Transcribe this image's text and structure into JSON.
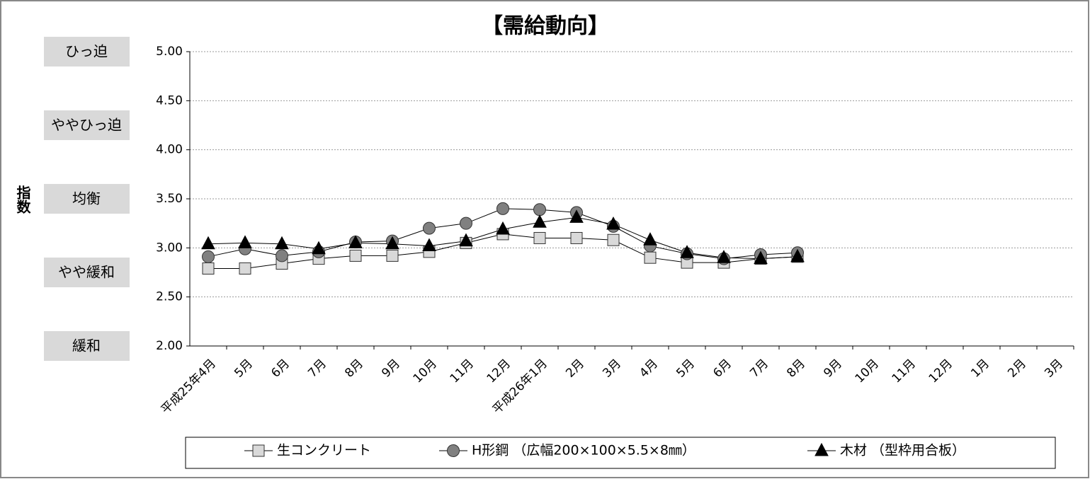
{
  "chart_data": {
    "type": "line",
    "title": "【需給動向】",
    "y_label": "指数",
    "categories": [
      "平成25年4月",
      "5月",
      "6月",
      "7月",
      "8月",
      "9月",
      "10月",
      "11月",
      "12月",
      "平成26年1月",
      "2月",
      "3月",
      "4月",
      "5月",
      "6月",
      "7月",
      "8月",
      "9月",
      "10月",
      "11月",
      "12月",
      "1月",
      "2月",
      "3月"
    ],
    "series": [
      {
        "name": "生コンクリート",
        "color": "#d9d9d9",
        "marker": "square",
        "values": [
          2.79,
          2.79,
          2.84,
          2.89,
          2.92,
          2.92,
          2.96,
          3.05,
          3.14,
          3.1,
          3.1,
          3.08,
          2.9,
          2.85,
          2.85,
          2.89,
          2.91,
          null,
          null,
          null,
          null,
          null,
          null,
          null
        ]
      },
      {
        "name": "H形鋼 （広幅200×100×5.5×8㎜）",
        "color": "#808080",
        "marker": "circle",
        "values": [
          2.91,
          2.99,
          2.92,
          2.96,
          3.06,
          3.07,
          3.2,
          3.25,
          3.4,
          3.39,
          3.36,
          3.22,
          3.02,
          2.94,
          2.89,
          2.93,
          2.95,
          null,
          null,
          null,
          null,
          null,
          null,
          null
        ]
      },
      {
        "name": "木材 （型枠用合板）",
        "color": "#000000",
        "marker": "triangle",
        "values": [
          3.04,
          3.05,
          3.04,
          2.99,
          3.05,
          3.04,
          3.02,
          3.07,
          3.19,
          3.26,
          3.31,
          3.24,
          3.08,
          2.95,
          2.9,
          2.89,
          2.91,
          null,
          null,
          null,
          null,
          null,
          null,
          null
        ]
      }
    ],
    "ylim": [
      2,
      5
    ],
    "yticks": [
      {
        "value": 2,
        "label": "2.00"
      },
      {
        "value": 2.5,
        "label": "2.50"
      },
      {
        "value": 3,
        "label": "3.00"
      },
      {
        "value": 3.5,
        "label": "3.50"
      },
      {
        "value": 4,
        "label": "4.00"
      },
      {
        "value": 4.5,
        "label": "4.50"
      },
      {
        "value": 5,
        "label": "5.00"
      }
    ],
    "levels": [
      {
        "label": "ひっ迫",
        "value": 5
      },
      {
        "label": "ややひっ迫",
        "value": 4.25
      },
      {
        "label": "均衡",
        "value": 3.5
      },
      {
        "label": "やや緩和",
        "value": 2.75
      },
      {
        "label": "緩和",
        "value": 2
      }
    ],
    "grid": true,
    "legend": "bottom"
  }
}
